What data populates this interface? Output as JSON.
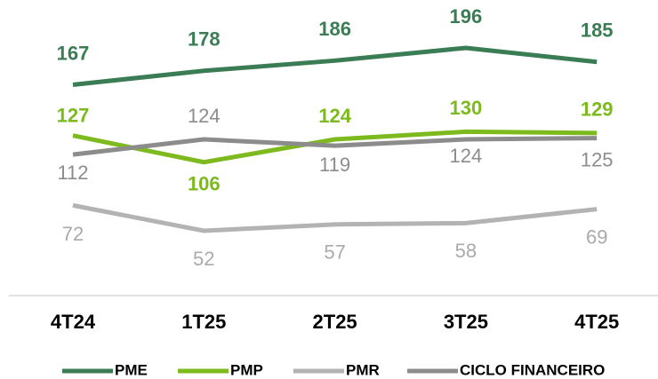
{
  "chart_data": {
    "type": "line",
    "categories": [
      "4T24",
      "1T25",
      "2T25",
      "3T25",
      "4T25"
    ],
    "series": [
      {
        "name": "PME",
        "color": "#3a7d55",
        "values": [
          167,
          178,
          186,
          196,
          185
        ]
      },
      {
        "name": "PMP",
        "color": "#7dba1e",
        "values": [
          127,
          106,
          124,
          130,
          129
        ]
      },
      {
        "name": "PMR",
        "color": "#b3b3b3",
        "values": [
          72,
          52,
          57,
          58,
          69
        ]
      },
      {
        "name": "CICLO FINANCEIRO",
        "color": "#8c8c8c",
        "values": [
          112,
          124,
          119,
          124,
          125
        ]
      }
    ],
    "legend": "bottom"
  }
}
